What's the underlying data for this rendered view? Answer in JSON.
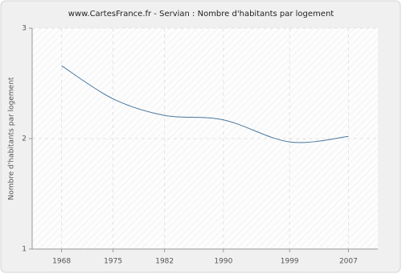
{
  "chart_data": {
    "type": "line",
    "title": "www.CartesFrance.fr - Servian : Nombre d'habitants par logement",
    "y_label": "Nombre d'habitants par logement",
    "x": [
      1968,
      1975,
      1982,
      1990,
      1999,
      2007
    ],
    "series": [
      {
        "name": "Servian",
        "color": "#4a78a0",
        "values": [
          2.66,
          2.36,
          2.21,
          2.17,
          1.97,
          2.02
        ]
      }
    ],
    "xlim": [
      1964,
      2011
    ],
    "xticks": [
      1968,
      1975,
      1982,
      1990,
      1999,
      2007
    ],
    "ylim": [
      1,
      3
    ],
    "yticks": [
      1,
      2,
      3
    ],
    "grid": true
  }
}
